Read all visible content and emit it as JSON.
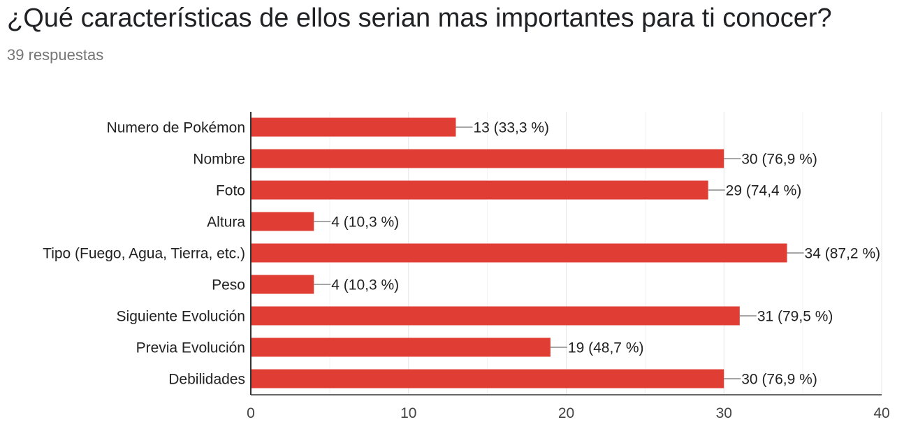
{
  "header": {
    "title": "¿Qué características de ellos serian mas importantes para ti conocer?",
    "responses": "39 respuestas"
  },
  "chart_data": {
    "type": "bar",
    "orientation": "horizontal",
    "categories": [
      "Numero de Pokémon",
      "Nombre",
      "Foto",
      "Altura",
      "Tipo (Fuego, Agua, Tierra, etc.)",
      "Peso",
      "Siguiente Evolución",
      "Previa Evolución",
      "Debilidades"
    ],
    "values": [
      13,
      30,
      29,
      4,
      34,
      4,
      31,
      19,
      30
    ],
    "value_labels": [
      "13 (33,3 %)",
      "30 (76,9 %)",
      "29 (74,4 %)",
      "4 (10,3 %)",
      "34 (87,2 %)",
      "4 (10,3 %)",
      "31 (79,5 %)",
      "19 (48,7 %)",
      "30 (76,9 %)"
    ],
    "xlim": [
      0,
      40
    ],
    "xticks": [
      0,
      10,
      20,
      30,
      40
    ],
    "grid": true,
    "colors": {
      "bar": "#E03E34",
      "axis": "#333333",
      "grid": "#e6e6e6",
      "minor_grid": "#f3f3f3",
      "leader": "#888888"
    }
  }
}
